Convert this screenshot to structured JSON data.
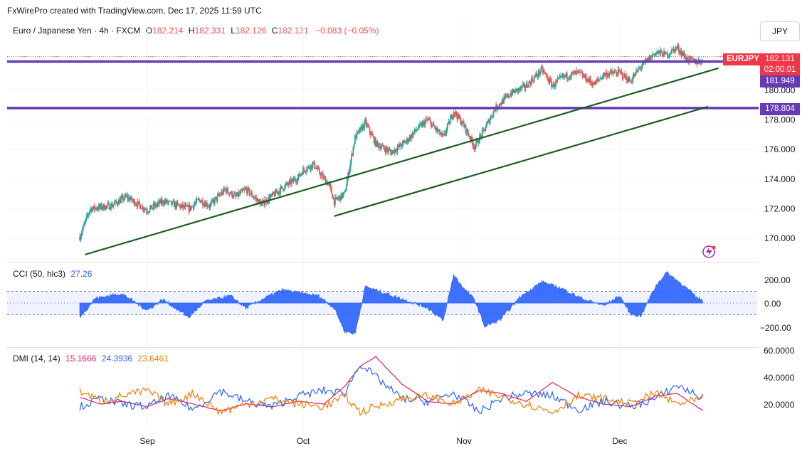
{
  "credit": "FxWirePro created with TradingView.com, Dec 17, 2025 11:59 UTC",
  "legend": {
    "symbol": "Euro / Japanese Yen · 4h · FXCM",
    "o_label": "O",
    "o_value": "182.214",
    "h_label": "H",
    "h_value": "182.331",
    "l_label": "L",
    "l_value": "182.126",
    "c_label": "C",
    "c_value": "182.131",
    "change": "−0.083 (−0.05%)"
  },
  "currency_button": "JPY",
  "price_tags": {
    "symbol": "EURJPY",
    "last": "182.131",
    "countdown": "02:00:01",
    "level1": "181.949",
    "level2": "178.804"
  },
  "colors": {
    "bull": "#26a69a",
    "bear": "#ef5350",
    "level_line": "#673ab7",
    "trendline": "#1b5e20",
    "cci": "#2962ff",
    "plus_di": "#2962ff",
    "minus_di": "#f57c00",
    "adx": "#e91e63",
    "tag_red": "#f23645",
    "tag_purple": "#673ab7"
  },
  "cci": {
    "label": "CCI (50, hlc3)",
    "value": "27.26",
    "ticks": [
      "200.00",
      "0.00",
      "−200.00"
    ]
  },
  "dmi": {
    "label": "DMI (14, 14)",
    "adx": "15.1666",
    "plus_di": "24.3936",
    "minus_di": "23.6461",
    "ticks": [
      "60.0000",
      "40.0000",
      "20.0000"
    ]
  },
  "chart_data": [
    {
      "type": "candlestick",
      "title": "Euro / Japanese Yen · 4h · FXCM",
      "ylim": [
        168.5,
        186.6
      ],
      "y_ticks": [
        "170.000",
        "172.000",
        "174.000",
        "176.000",
        "178.000",
        "180.000"
      ],
      "x_ticks": [
        "Sep",
        "Oct",
        "Nov",
        "Dec"
      ],
      "horizontal_levels": [
        181.949,
        178.804
      ],
      "last_price": 182.131,
      "close_path": [
        [
          "Aug 19",
          170.1
        ],
        [
          "Aug 21",
          172.0
        ],
        [
          "Aug 25",
          172.2
        ],
        [
          "Aug 28",
          172.8
        ],
        [
          "Sep 1",
          171.9
        ],
        [
          "Sep 4",
          172.5
        ],
        [
          "Sep 9",
          172.0
        ],
        [
          "Sep 11",
          172.6
        ],
        [
          "Sep 13",
          172.2
        ],
        [
          "Sep 16",
          173.3
        ],
        [
          "Sep 18",
          172.8
        ],
        [
          "Sep 20",
          173.3
        ],
        [
          "Sep 23",
          172.3
        ],
        [
          "Sep 27",
          173.4
        ],
        [
          "Sep 30",
          174.1
        ],
        [
          "Oct 1",
          174.6
        ],
        [
          "Oct 3",
          175.0
        ],
        [
          "Oct 4",
          174.5
        ],
        [
          "Oct 6",
          173.6
        ],
        [
          "Oct 7",
          172.5
        ],
        [
          "Oct 9",
          173.0
        ],
        [
          "Oct 11",
          176.8
        ],
        [
          "Oct 13",
          177.8
        ],
        [
          "Oct 15",
          176.4
        ],
        [
          "Oct 18",
          175.8
        ],
        [
          "Oct 21",
          176.6
        ],
        [
          "Oct 23",
          177.4
        ],
        [
          "Oct 25",
          178.0
        ],
        [
          "Oct 28",
          176.8
        ],
        [
          "Oct 30",
          178.6
        ],
        [
          "Nov 1",
          177.6
        ],
        [
          "Nov 3",
          176.2
        ],
        [
          "Nov 5",
          177.4
        ],
        [
          "Nov 7",
          178.8
        ],
        [
          "Nov 10",
          179.8
        ],
        [
          "Nov 13",
          180.3
        ],
        [
          "Nov 16",
          181.4
        ],
        [
          "Nov 18",
          180.3
        ],
        [
          "Nov 20",
          180.9
        ],
        [
          "Nov 23",
          181.2
        ],
        [
          "Nov 26",
          180.4
        ],
        [
          "Nov 28",
          181.1
        ],
        [
          "Dec 1",
          181.2
        ],
        [
          "Dec 3",
          180.6
        ],
        [
          "Dec 5",
          181.6
        ],
        [
          "Dec 8",
          182.6
        ],
        [
          "Dec 10",
          182.4
        ],
        [
          "Dec 12",
          182.9
        ],
        [
          "Dec 14",
          182.1
        ],
        [
          "Dec 16",
          181.9
        ],
        [
          "Dec 17",
          182.1
        ]
      ],
      "trendlines": [
        {
          "from": [
            "Aug 20",
            168.9
          ],
          "to": [
            "Dec 20",
            181.5
          ]
        },
        {
          "from": [
            "Oct 7",
            171.5
          ],
          "to": [
            "Dec 18",
            178.9
          ]
        }
      ]
    },
    {
      "type": "area",
      "title": "CCI (50, hlc3)",
      "ylim": [
        -300,
        300
      ],
      "bands": [
        100,
        -100
      ],
      "x": [
        "Aug 19",
        "Aug 22",
        "Aug 27",
        "Sep 1",
        "Sep 4",
        "Sep 9",
        "Sep 12",
        "Sep 17",
        "Sep 20",
        "Sep 24",
        "Sep 27",
        "Oct 1",
        "Oct 4",
        "Oct 7",
        "Oct 9",
        "Oct 11",
        "Oct 13",
        "Oct 17",
        "Oct 21",
        "Oct 25",
        "Oct 28",
        "Oct 30",
        "Nov 1",
        "Nov 3",
        "Nov 5",
        "Nov 8",
        "Nov 12",
        "Nov 16",
        "Nov 20",
        "Nov 24",
        "Nov 28",
        "Dec 1",
        "Dec 3",
        "Dec 5",
        "Dec 8",
        "Dec 10",
        "Dec 13",
        "Dec 16",
        "Dec 17"
      ],
      "values": [
        -120,
        40,
        80,
        -60,
        30,
        -120,
        10,
        60,
        -40,
        50,
        110,
        80,
        60,
        -40,
        -240,
        -260,
        140,
        80,
        20,
        -40,
        -150,
        240,
        120,
        30,
        -200,
        -140,
        60,
        180,
        120,
        30,
        -20,
        60,
        -90,
        -110,
        150,
        260,
        160,
        40,
        27.26
      ]
    },
    {
      "type": "line",
      "title": "DMI (14, 14)",
      "ylim": [
        0,
        63
      ],
      "x": [
        "Aug 19",
        "Aug 23",
        "Aug 27",
        "Sep 1",
        "Sep 5",
        "Sep 10",
        "Sep 15",
        "Sep 20",
        "Sep 25",
        "Sep 30",
        "Oct 5",
        "Oct 9",
        "Oct 12",
        "Oct 15",
        "Oct 20",
        "Oct 25",
        "Oct 30",
        "Nov 4",
        "Nov 8",
        "Nov 13",
        "Nov 18",
        "Nov 23",
        "Nov 28",
        "Dec 3",
        "Dec 8",
        "Dec 12",
        "Dec 17"
      ],
      "series": [
        {
          "name": "ADX",
          "values": [
            25,
            20,
            22,
            18,
            24,
            20,
            15,
            20,
            18,
            22,
            20,
            33,
            48,
            55,
            35,
            22,
            20,
            30,
            28,
            22,
            36,
            25,
            20,
            18,
            26,
            28,
            15.1666
          ]
        },
        {
          "name": "+DI",
          "values": [
            18,
            24,
            20,
            18,
            26,
            16,
            30,
            22,
            18,
            26,
            30,
            28,
            50,
            40,
            24,
            22,
            28,
            14,
            24,
            28,
            26,
            16,
            22,
            18,
            24,
            34,
            24.3936
          ]
        },
        {
          "name": "−DI",
          "values": [
            30,
            22,
            26,
            30,
            20,
            28,
            14,
            20,
            24,
            20,
            18,
            26,
            14,
            18,
            24,
            26,
            20,
            30,
            26,
            20,
            14,
            26,
            24,
            20,
            28,
            20,
            23.6461
          ]
        }
      ]
    }
  ]
}
